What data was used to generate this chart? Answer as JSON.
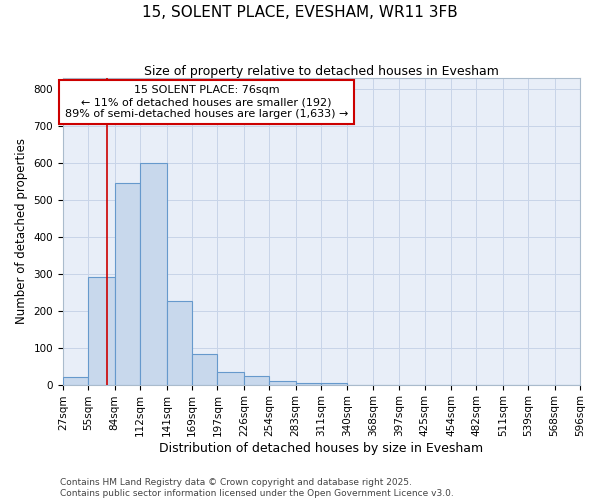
{
  "title": "15, SOLENT PLACE, EVESHAM, WR11 3FB",
  "subtitle": "Size of property relative to detached houses in Evesham",
  "xlabel": "Distribution of detached houses by size in Evesham",
  "ylabel": "Number of detached properties",
  "bin_edges": [
    27,
    55,
    84,
    112,
    141,
    169,
    197,
    226,
    254,
    283,
    311,
    340,
    368,
    397,
    425,
    454,
    482,
    511,
    539,
    568,
    596
  ],
  "bar_heights": [
    20,
    290,
    545,
    600,
    225,
    83,
    35,
    22,
    10,
    5,
    3,
    0,
    0,
    0,
    0,
    0,
    0,
    0,
    0,
    0
  ],
  "bar_color": "#c8d8ec",
  "bar_edgecolor": "#6699cc",
  "grid_color": "#c8d4e8",
  "background_color": "#ffffff",
  "plot_bg_color": "#e8eef8",
  "red_line_x": 76,
  "annotation_line1": "15 SOLENT PLACE: 76sqm",
  "annotation_line2": "← 11% of detached houses are smaller (192)",
  "annotation_line3": "89% of semi-detached houses are larger (1,633) →",
  "annotation_box_color": "#ffffff",
  "annotation_border_color": "#cc0000",
  "footer_text": "Contains HM Land Registry data © Crown copyright and database right 2025.\nContains public sector information licensed under the Open Government Licence v3.0.",
  "ylim": [
    0,
    830
  ],
  "xlim": [
    27,
    596
  ],
  "figsize": [
    6.0,
    5.0
  ],
  "dpi": 100,
  "title_fontsize": 11,
  "subtitle_fontsize": 9,
  "xlabel_fontsize": 9,
  "ylabel_fontsize": 8.5,
  "tick_fontsize": 7.5,
  "annotation_fontsize": 8,
  "footer_fontsize": 6.5
}
